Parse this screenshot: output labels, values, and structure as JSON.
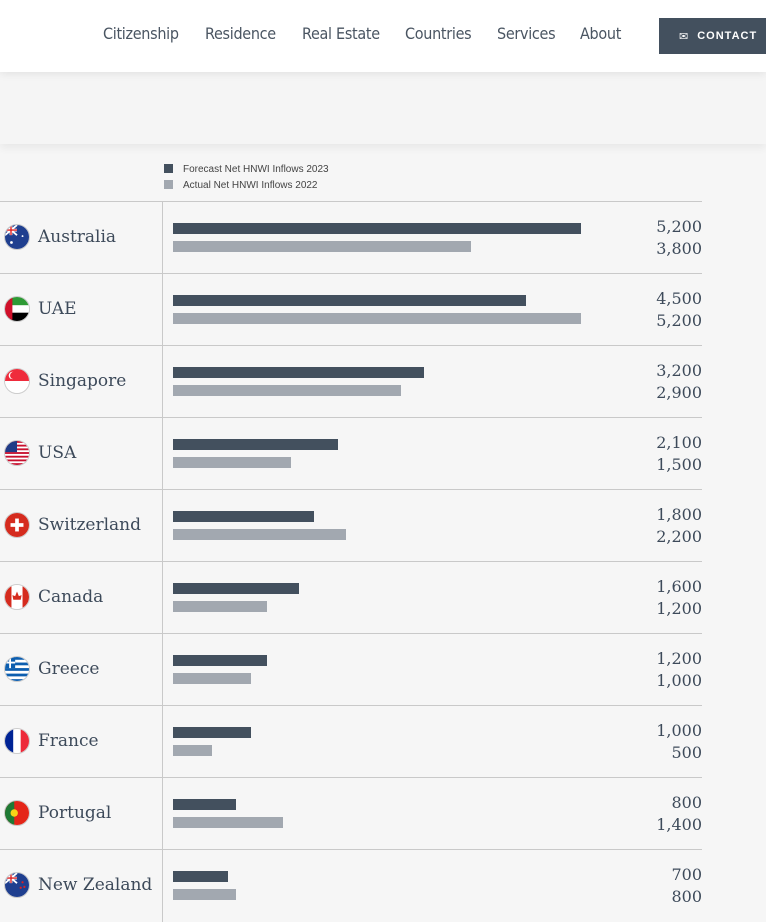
{
  "nav": {
    "items": [
      "Citizenship",
      "Residence",
      "Real Estate",
      "Countries",
      "Services",
      "About"
    ],
    "contact": "CONTACT"
  },
  "colors": {
    "forecast": "#43505e",
    "actual": "#a2a8b0"
  },
  "chart_data": {
    "type": "bar",
    "orientation": "horizontal",
    "categories": [
      "Australia",
      "UAE",
      "Singapore",
      "USA",
      "Switzerland",
      "Canada",
      "Greece",
      "France",
      "Portugal",
      "New Zealand"
    ],
    "series": [
      {
        "name": "Forecast Net HNWI Inflows 2023",
        "values": [
          5200,
          4500,
          3200,
          2100,
          1800,
          1600,
          1200,
          1000,
          800,
          700
        ]
      },
      {
        "name": "Actual Net HNWI Inflows 2022",
        "values": [
          3800,
          5200,
          2900,
          1500,
          2200,
          1200,
          1000,
          500,
          1400,
          800
        ]
      }
    ],
    "labels": [
      [
        "5,200",
        "3,800"
      ],
      [
        "4,500",
        "5,200"
      ],
      [
        "3,200",
        "2,900"
      ],
      [
        "2,100",
        "1,500"
      ],
      [
        "1,800",
        "2,200"
      ],
      [
        "1,600",
        "1,200"
      ],
      [
        "1,200",
        "1,000"
      ],
      [
        "1,000",
        "500"
      ],
      [
        "800",
        "1,400"
      ],
      [
        "700",
        "800"
      ]
    ],
    "xlim": [
      0,
      5200
    ],
    "legend": "top-left"
  }
}
